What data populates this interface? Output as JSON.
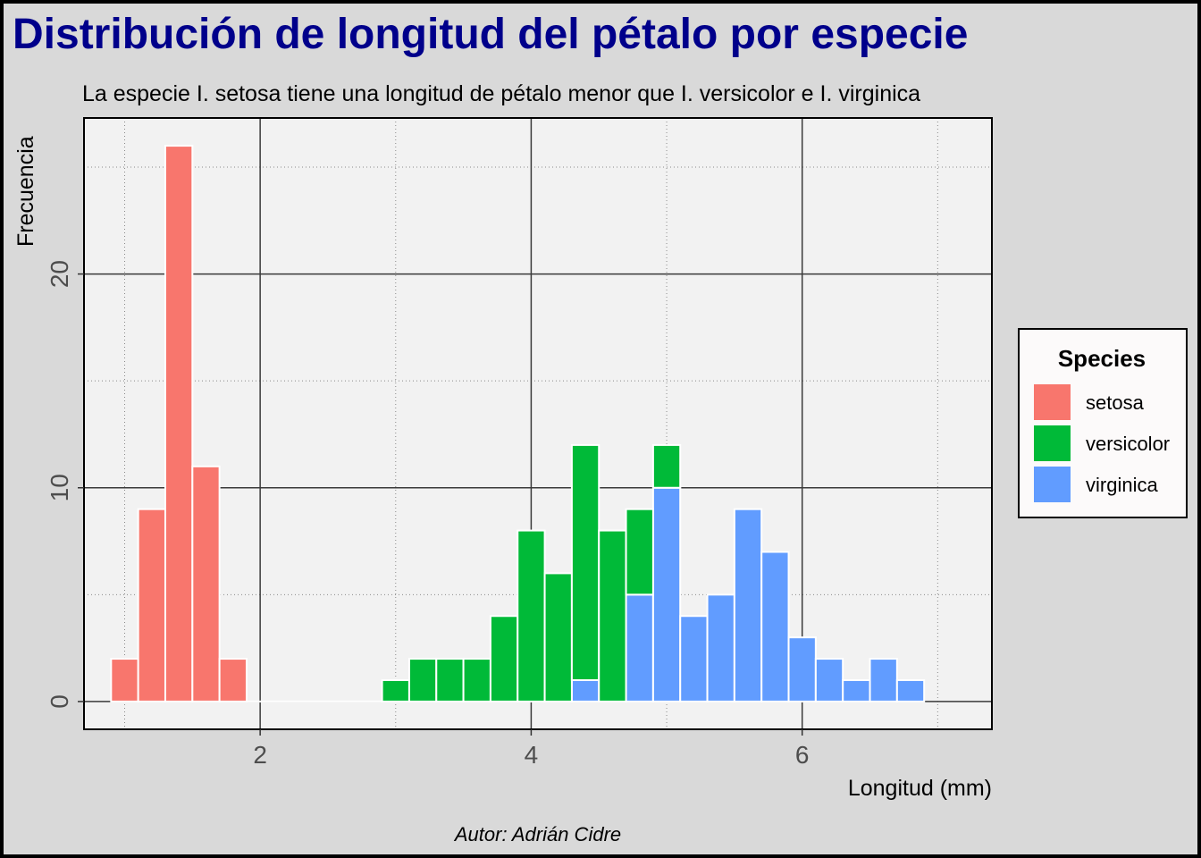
{
  "chart_data": {
    "type": "bar",
    "title": "Distribución de longitud del pétalo por especie",
    "subtitle": "La especie I. setosa tiene una longitud de pétalo menor que I. versicolor e I. virginica",
    "caption": "Autor: Adrián Cidre",
    "xlabel": "Longitud (mm)",
    "ylabel": "Frecuencia",
    "xlim": [
      0.7,
      7.4
    ],
    "ylim": [
      -1.3,
      27.3
    ],
    "x_ticks": [
      2,
      4,
      6
    ],
    "y_ticks": [
      0,
      10,
      20
    ],
    "bin_width": 0.2,
    "stacked": true,
    "grid": true,
    "legend_title": "Species",
    "legend_position": "right",
    "series": [
      {
        "name": "setosa",
        "color": "#F8766D",
        "bins": [
          {
            "x0": 0.9,
            "x1": 1.1,
            "count": 2
          },
          {
            "x0": 1.1,
            "x1": 1.3,
            "count": 9
          },
          {
            "x0": 1.3,
            "x1": 1.5,
            "count": 26
          },
          {
            "x0": 1.5,
            "x1": 1.7,
            "count": 11
          },
          {
            "x0": 1.7,
            "x1": 1.9,
            "count": 2
          }
        ]
      },
      {
        "name": "versicolor",
        "color": "#00BA38",
        "bins": [
          {
            "x0": 2.9,
            "x1": 3.1,
            "count": 1
          },
          {
            "x0": 3.1,
            "x1": 3.3,
            "count": 2
          },
          {
            "x0": 3.3,
            "x1": 3.5,
            "count": 2
          },
          {
            "x0": 3.5,
            "x1": 3.7,
            "count": 2
          },
          {
            "x0": 3.7,
            "x1": 3.9,
            "count": 4
          },
          {
            "x0": 3.9,
            "x1": 4.1,
            "count": 8
          },
          {
            "x0": 4.1,
            "x1": 4.3,
            "count": 6
          },
          {
            "x0": 4.3,
            "x1": 4.5,
            "count": 11
          },
          {
            "x0": 4.5,
            "x1": 4.7,
            "count": 8
          },
          {
            "x0": 4.7,
            "x1": 4.9,
            "count": 4
          },
          {
            "x0": 4.9,
            "x1": 5.1,
            "count": 2
          }
        ]
      },
      {
        "name": "virginica",
        "color": "#619CFF",
        "bins": [
          {
            "x0": 4.3,
            "x1": 4.5,
            "count": 1
          },
          {
            "x0": 4.7,
            "x1": 4.9,
            "count": 5
          },
          {
            "x0": 4.9,
            "x1": 5.1,
            "count": 10
          },
          {
            "x0": 5.1,
            "x1": 5.3,
            "count": 4
          },
          {
            "x0": 5.3,
            "x1": 5.5,
            "count": 5
          },
          {
            "x0": 5.5,
            "x1": 5.7,
            "count": 9
          },
          {
            "x0": 5.7,
            "x1": 5.9,
            "count": 7
          },
          {
            "x0": 5.9,
            "x1": 6.1,
            "count": 3
          },
          {
            "x0": 6.1,
            "x1": 6.3,
            "count": 2
          },
          {
            "x0": 6.3,
            "x1": 6.5,
            "count": 1
          },
          {
            "x0": 6.5,
            "x1": 6.7,
            "count": 2
          },
          {
            "x0": 6.7,
            "x1": 6.9,
            "count": 1
          }
        ]
      }
    ]
  }
}
